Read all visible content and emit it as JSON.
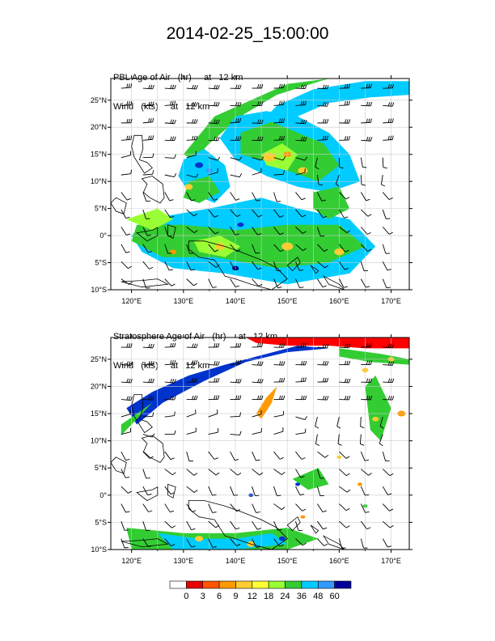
{
  "title": "2014-02-25_15:00:00",
  "panels": [
    {
      "label_line1": "PBL Age of Air   (hr)     at   12 km",
      "label_line2": "Wind   (kts)     at   12 km",
      "variable": "PBL Age of Air",
      "dominant_colors": [
        "#00ccff",
        "#33cc33",
        "#99ff33",
        "#ffcc33",
        "#0033cc"
      ]
    },
    {
      "label_line1": "Stratosphere Age of Air   (hr)     at   12 km",
      "label_line2": "Wind   (kts)     at   12 km",
      "variable": "Stratosphere Age of Air",
      "dominant_colors": [
        "#ff0000",
        "#0033cc",
        "#3399ff",
        "#33cc33",
        "#ffcc33"
      ]
    }
  ],
  "map": {
    "lon_ticks": [
      "120°E",
      "130°E",
      "140°E",
      "150°E",
      "160°E",
      "170°E"
    ],
    "lat_ticks": [
      "25°N",
      "20°N",
      "15°N",
      "10°N",
      "5°N",
      "0°",
      "5°S",
      "10°S"
    ],
    "lon_range": [
      116,
      173.5
    ],
    "lat_range": [
      -10,
      29
    ]
  },
  "colorbar": {
    "labels": [
      "0",
      "3",
      "6",
      "9",
      "12",
      "18",
      "24",
      "36",
      "48",
      "60"
    ],
    "colors": [
      "#ffffff",
      "#e60000",
      "#ff5500",
      "#ff9900",
      "#ffcc33",
      "#ffff33",
      "#99ff33",
      "#33cc33",
      "#00ccff",
      "#3399ff",
      "#000099"
    ]
  }
}
